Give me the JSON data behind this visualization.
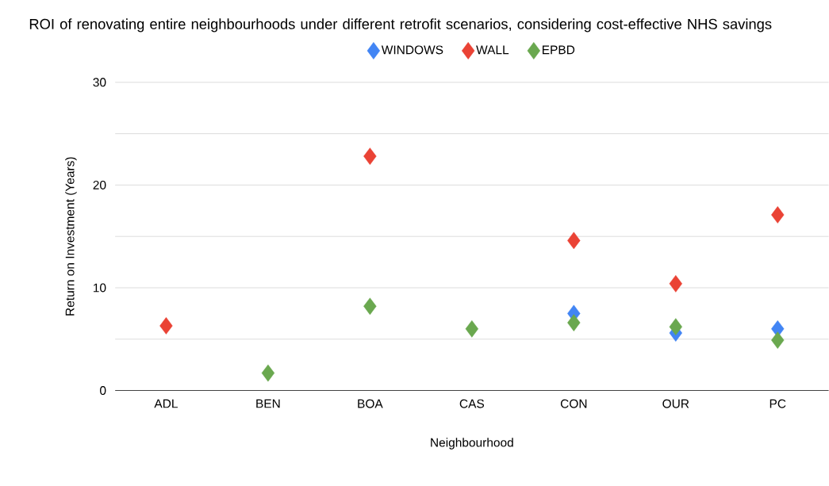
{
  "chart_data": {
    "type": "scatter",
    "title": "ROI of renovating entire neighbourhoods under different retrofit scenarios, considering cost-effective NHS savings",
    "xlabel": "Neighbourhood",
    "ylabel": "Return on Investment (Years)",
    "categories": [
      "ADL",
      "BEN",
      "BOA",
      "CAS",
      "CON",
      "OUR",
      "PC"
    ],
    "series": [
      {
        "name": "WINDOWS",
        "color": "#4285f4",
        "values": [
          null,
          null,
          null,
          null,
          7.5,
          5.6,
          6.0
        ]
      },
      {
        "name": "WALL",
        "color": "#ea4335",
        "values": [
          6.3,
          null,
          22.8,
          null,
          14.6,
          10.4,
          17.1
        ]
      },
      {
        "name": "EPBD",
        "color": "#6aa84f",
        "values": [
          null,
          1.7,
          8.2,
          6.0,
          6.6,
          6.2,
          4.9
        ]
      }
    ],
    "ylim": [
      0,
      30
    ],
    "yticks": [
      0,
      {
        "value": 5,
        "label": null
      },
      10,
      {
        "value": 15,
        "label": null
      },
      20,
      {
        "value": 25,
        "label": null
      },
      30
    ],
    "grid": "y",
    "legend": "top",
    "marker": "diamond"
  }
}
